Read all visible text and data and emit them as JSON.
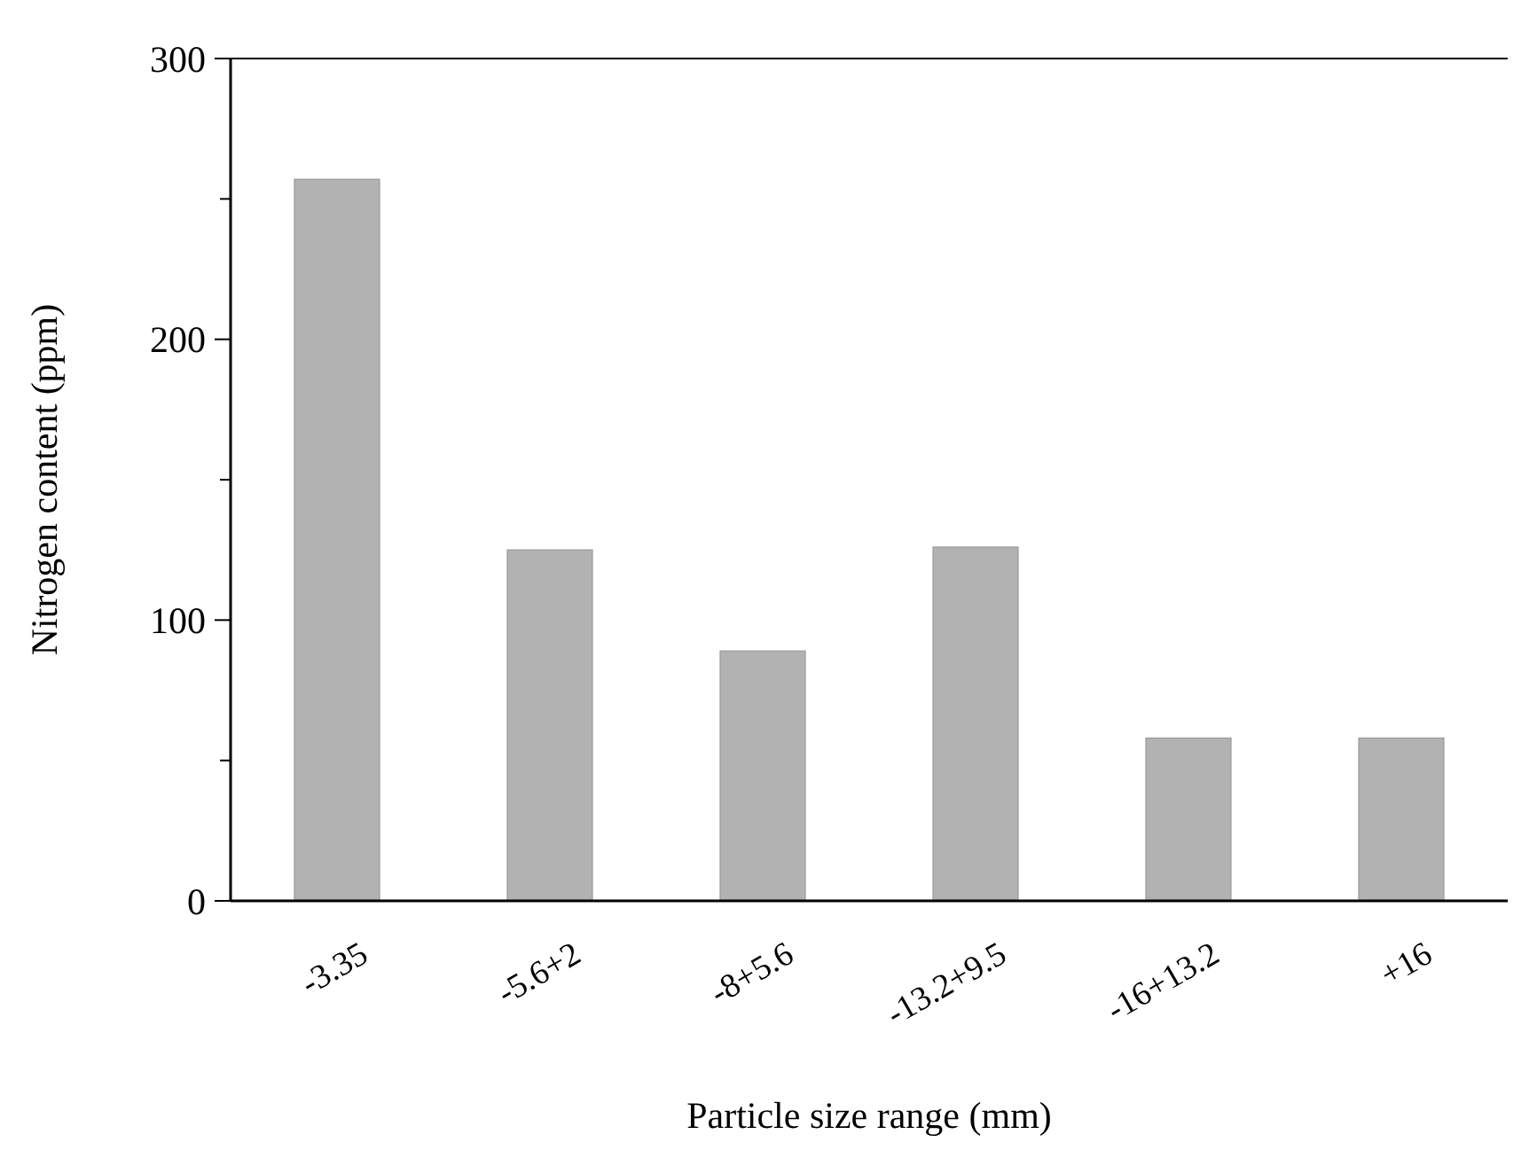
{
  "chart_data": {
    "type": "bar",
    "xlabel": "Particle size range (mm)",
    "ylabel": "Nitrogen content (ppm)",
    "categories": [
      "-3.35",
      "-5.6+2",
      "-8+5.6",
      "-13.2+9.5",
      "-16+13.2",
      "+16"
    ],
    "values": [
      257,
      125,
      89,
      126,
      58,
      58
    ],
    "color": "#b2b2b2",
    "ylim": [
      0,
      300
    ],
    "yticks": [
      0,
      {
        "value": 50,
        "label": null
      },
      100,
      {
        "value": 150,
        "label": null
      },
      200,
      {
        "value": 250,
        "label": null
      },
      300
    ],
    "grid": false
  }
}
